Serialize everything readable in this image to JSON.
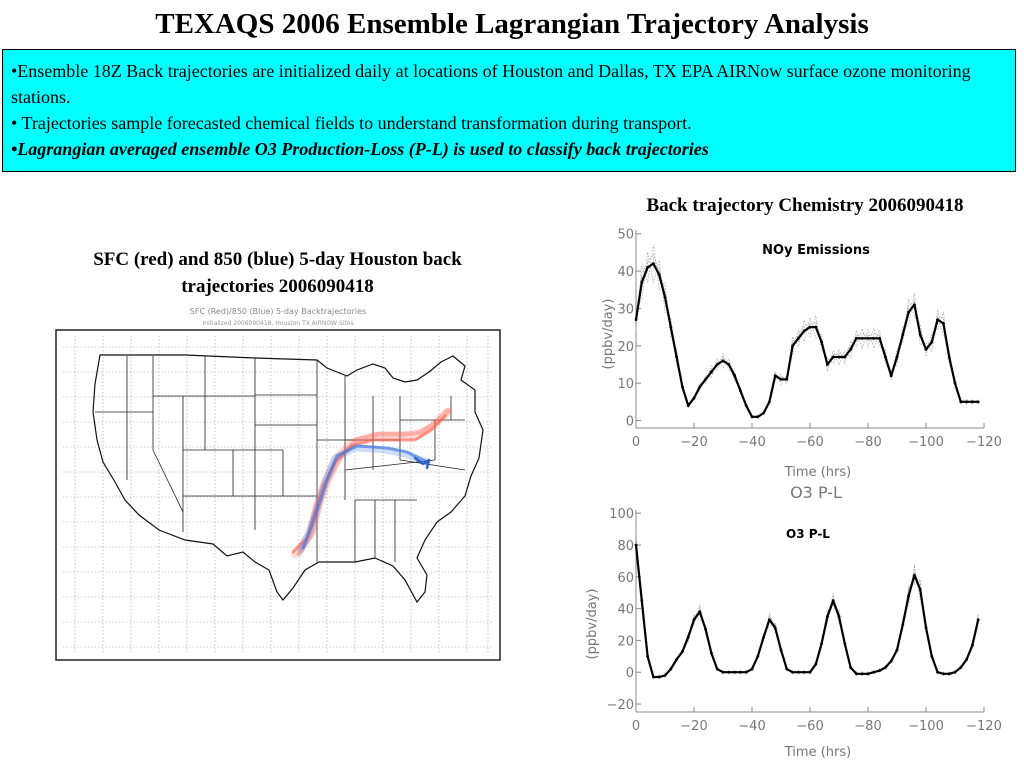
{
  "title": "TEXAQS 2006 Ensemble Lagrangian Trajectory Analysis",
  "info": {
    "bullets": [
      "•Ensemble 18Z Back trajectories are initialized daily at locations of Houston and Dallas, TX EPA AIRNow surface ozone monitoring stations.",
      "• Trajectories sample forecasted chemical fields to understand transformation during transport.",
      "•Lagrangian averaged ensemble O3 Production-Loss (P-L) is used to classify back trajectories"
    ]
  },
  "map_panel": {
    "caption": "SFC (red) and 850 (blue) 5-day Houston back trajectories 2006090418",
    "plot_title": "SFC (Red)/850 (Blue) 5-day Backtrajectories",
    "plot_subtitle": "Initialized 2006090418, Houston TX AIRNOW Sites",
    "colors": {
      "sfc": "#ff6050",
      "h850": "#3c78e0"
    }
  },
  "chem_caption": "Back trajectory Chemistry 2006090418",
  "chart_data": [
    {
      "type": "line",
      "title": "NOy Emissions",
      "xlabel": "Time (hrs)",
      "ylabel": "(ppbv/day)",
      "xlim": [
        0,
        -120
      ],
      "ylim": [
        -2,
        51
      ],
      "xticks": [
        0,
        -20,
        -40,
        -60,
        -80,
        -100,
        -120
      ],
      "xtick_labels": [
        "0",
        "−20",
        "−40",
        "−60",
        "−80",
        "−100",
        "−120"
      ],
      "yticks": [
        0,
        10,
        20,
        30,
        40,
        50
      ],
      "ytick_labels": [
        "0",
        "10",
        "20",
        "30",
        "40",
        "50"
      ],
      "series": [
        {
          "x": [
            0,
            -2,
            -4,
            -6,
            -8,
            -10,
            -12,
            -14,
            -16,
            -18,
            -20,
            -22,
            -24,
            -26,
            -28,
            -30,
            -32,
            -34,
            -36,
            -38,
            -40,
            -42,
            -44,
            -46,
            -48,
            -50,
            -52,
            -54,
            -56,
            -58,
            -60,
            -62,
            -64,
            -66,
            -68,
            -70,
            -72,
            -74,
            -76,
            -78,
            -80,
            -82,
            -84,
            -86,
            -88,
            -90,
            -92,
            -94,
            -96,
            -98,
            -100,
            -102,
            -104,
            -106,
            -108,
            -110,
            -112,
            -114,
            -116,
            -118
          ],
          "y": [
            27,
            37,
            41,
            42,
            39,
            33,
            25,
            17,
            9,
            4,
            6,
            9,
            11,
            13,
            15,
            16,
            15,
            12,
            8,
            4,
            1,
            1,
            2,
            5,
            12,
            11,
            11,
            20,
            22,
            24,
            25,
            25,
            21,
            15,
            17,
            17,
            17,
            19,
            22,
            22,
            22,
            22,
            22,
            17,
            12,
            17,
            23,
            29,
            31,
            23,
            19,
            21,
            27,
            26,
            17,
            10,
            5,
            5,
            5,
            5
          ]
        }
      ]
    },
    {
      "type": "line",
      "title": "O3 P-L",
      "axis_title": "O3 P-L",
      "xlabel": "Time (hrs)",
      "ylabel": "(ppbv/day)",
      "xlim": [
        0,
        -120
      ],
      "ylim": [
        -25,
        102
      ],
      "xticks": [
        0,
        -20,
        -40,
        -60,
        -80,
        -100,
        -120
      ],
      "xtick_labels": [
        "0",
        "−20",
        "−40",
        "−60",
        "−80",
        "−100",
        "−120"
      ],
      "yticks": [
        -20,
        0,
        20,
        40,
        60,
        80,
        100
      ],
      "ytick_labels": [
        "−20",
        "0",
        "20",
        "40",
        "60",
        "80",
        "100"
      ],
      "series": [
        {
          "x": [
            0,
            -2,
            -4,
            -6,
            -8,
            -10,
            -12,
            -14,
            -16,
            -18,
            -20,
            -22,
            -24,
            -26,
            -28,
            -30,
            -32,
            -34,
            -36,
            -38,
            -40,
            -42,
            -44,
            -46,
            -48,
            -50,
            -52,
            -54,
            -56,
            -58,
            -60,
            -62,
            -64,
            -66,
            -68,
            -70,
            -72,
            -74,
            -76,
            -78,
            -80,
            -82,
            -84,
            -86,
            -88,
            -90,
            -92,
            -94,
            -96,
            -98,
            -100,
            -102,
            -104,
            -106,
            -108,
            -110,
            -112,
            -114,
            -116,
            -118
          ],
          "y": [
            80,
            45,
            10,
            -3,
            -3,
            -2,
            2,
            8,
            13,
            22,
            33,
            38,
            27,
            12,
            2,
            0,
            0,
            0,
            0,
            0,
            2,
            10,
            22,
            33,
            28,
            14,
            2,
            0,
            0,
            0,
            0,
            5,
            18,
            35,
            45,
            35,
            18,
            3,
            -1,
            -1,
            -1,
            0,
            1,
            3,
            7,
            14,
            30,
            48,
            61,
            52,
            28,
            10,
            0,
            -1,
            -1,
            0,
            3,
            8,
            17,
            33
          ]
        }
      ]
    }
  ]
}
